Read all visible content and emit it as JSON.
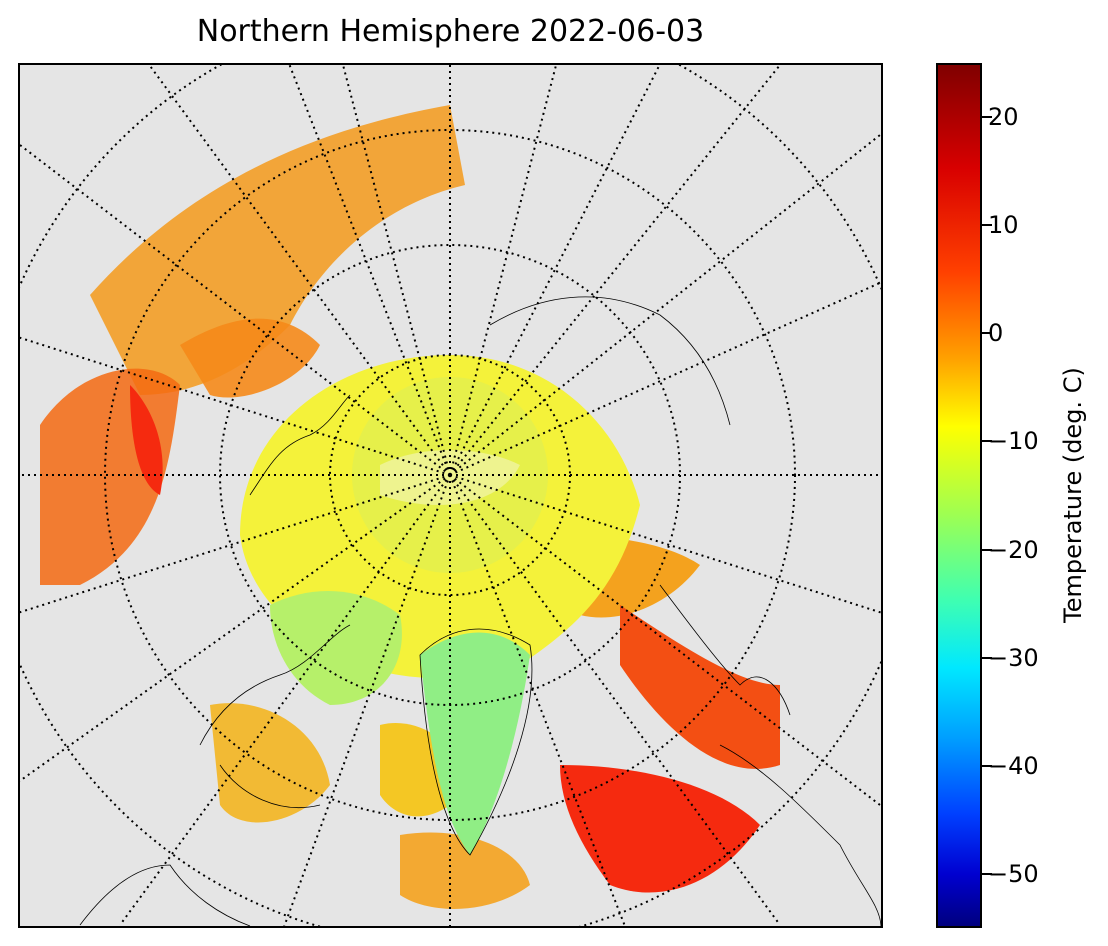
{
  "title": "Northern Hemisphere 2022-06-03",
  "colorbar": {
    "label": "Temperature (deg. C)",
    "min": -55,
    "max": 25,
    "ticks": [
      {
        "value": 20,
        "label": "20"
      },
      {
        "value": 10,
        "label": "10"
      },
      {
        "value": 0,
        "label": "0"
      },
      {
        "value": -10,
        "label": "−10"
      },
      {
        "value": -20,
        "label": "−20"
      },
      {
        "value": -30,
        "label": "−30"
      },
      {
        "value": -40,
        "label": "−40"
      },
      {
        "value": -50,
        "label": "−50"
      }
    ],
    "colormap": "jet"
  },
  "map": {
    "projection": "north-polar-stereographic",
    "background_color": "#e5e5e5",
    "gridlines": "dotted",
    "meridian_step_deg": 15,
    "parallel_count": 4,
    "colors": {
      "pole": "#e6f04a",
      "yellow": "#f4f23a",
      "green": "#9af07a",
      "orange": "#f3a11d",
      "red": "#f52a0f"
    }
  }
}
